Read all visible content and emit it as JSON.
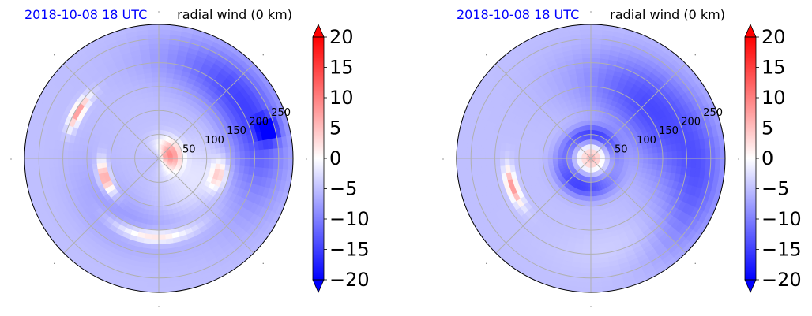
{
  "chart_data": [
    {
      "type": "heatmap",
      "projection": "polar",
      "title_left": "2018-10-08 18 UTC",
      "title_right": "radial wind (0 km)",
      "radial_ticks": [
        "50",
        "100",
        "150",
        "200",
        "250"
      ],
      "radial_values": [
        50,
        100,
        150,
        200,
        250
      ],
      "rlim": [
        0,
        280
      ],
      "angular_gridlines_deg": [
        0,
        45,
        90,
        135,
        180,
        225,
        270,
        315
      ],
      "grid": true,
      "colormap": "bwr",
      "color_range": [
        -20,
        20
      ],
      "colorbar_extend": "both",
      "colorbar_ticks": [
        "20",
        "15",
        "10",
        "5",
        "0",
        "−5",
        "−10",
        "−15",
        "−20"
      ],
      "colorbar_values": [
        20,
        15,
        10,
        5,
        0,
        -5,
        -10,
        -15,
        -20
      ],
      "field": {
        "background": -5,
        "features": [
          {
            "r": 25,
            "theta": 20,
            "sr": 18,
            "st": 50,
            "v": 9
          },
          {
            "r": 120,
            "theta": 200,
            "sr": 8,
            "st": 12,
            "v": 10
          },
          {
            "r": 195,
            "theta": 150,
            "sr": 8,
            "st": 8,
            "v": 8
          },
          {
            "r": 165,
            "theta": 265,
            "sr": 10,
            "st": 22,
            "v": 4
          },
          {
            "r": 210,
            "theta": 30,
            "sr": 45,
            "st": 38,
            "v": -15
          },
          {
            "r": 235,
            "theta": 15,
            "sr": 14,
            "st": 4,
            "v": -20
          },
          {
            "r": 130,
            "theta": 345,
            "sr": 12,
            "st": 10,
            "v": 4
          },
          {
            "r": 150,
            "theta": 240,
            "sr": 40,
            "st": 40,
            "v": -8
          },
          {
            "r": 90,
            "theta": 330,
            "sr": 35,
            "st": 40,
            "v": -2
          }
        ]
      }
    },
    {
      "type": "heatmap",
      "projection": "polar",
      "title_left": "2018-10-08 18 UTC",
      "title_right": "radial wind (0 km)",
      "radial_ticks": [
        "50",
        "100",
        "150",
        "200",
        "250"
      ],
      "radial_values": [
        50,
        100,
        150,
        200,
        250
      ],
      "rlim": [
        0,
        280
      ],
      "angular_gridlines_deg": [
        0,
        45,
        90,
        135,
        180,
        225,
        270,
        315
      ],
      "grid": true,
      "colormap": "bwr",
      "color_range": [
        -20,
        20
      ],
      "colorbar_extend": "both",
      "colorbar_ticks": [
        "20",
        "15",
        "10",
        "5",
        "0",
        "−5",
        "−10",
        "−15",
        "−20"
      ],
      "colorbar_values": [
        20,
        15,
        10,
        5,
        0,
        -5,
        -10,
        -15,
        -20
      ],
      "field": {
        "background": -5,
        "features": [
          {
            "r": 0,
            "theta": 0,
            "sr": 22,
            "st": 400,
            "v": 6
          },
          {
            "r": 50,
            "theta": 90,
            "sr": 14,
            "st": 60,
            "v": -15
          },
          {
            "r": 60,
            "theta": 250,
            "sr": 18,
            "st": 50,
            "v": -15
          },
          {
            "r": 160,
            "theta": 40,
            "sr": 55,
            "st": 40,
            "v": -14
          },
          {
            "r": 230,
            "theta": 345,
            "sr": 40,
            "st": 30,
            "v": -12
          },
          {
            "r": 175,
            "theta": 200,
            "sr": 8,
            "st": 10,
            "v": 8
          },
          {
            "r": 200,
            "theta": 300,
            "sr": 35,
            "st": 30,
            "v": -3
          }
        ]
      }
    }
  ]
}
